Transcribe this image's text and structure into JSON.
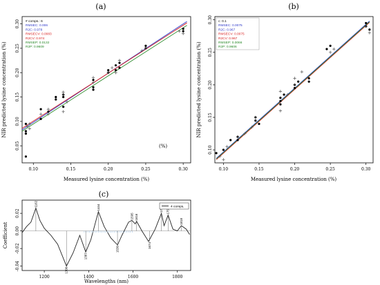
{
  "panel_labels": [
    "(a)",
    "(b)",
    "(c)"
  ],
  "chart_data": [
    {
      "type": "scatter",
      "panel": "(a)",
      "xlabel": "Measured lysine concentration (%)",
      "ylabel": "NIR predicted lysine concentration (%)",
      "xlim": [
        0.085,
        0.31
      ],
      "ylim": [
        0.015,
        0.315
      ],
      "xticks": [
        "0.10",
        "0.15",
        "0.20",
        "0.25",
        "0.30"
      ],
      "yticks": [
        "0.05",
        "0.10",
        "0.15",
        "0.20",
        "0.25",
        "0.30"
      ],
      "xtick_values": [
        0.1,
        0.15,
        0.2,
        0.25,
        0.3
      ],
      "ytick_values": [
        0.05,
        0.1,
        0.15,
        0.2,
        0.25,
        0.3
      ],
      "annotation": "(%)",
      "legend": {
        "placement": "top-left",
        "entries": [
          {
            "text": "# comps.: 6",
            "color": "#000000"
          },
          {
            "text": "RMSEC: 0.006",
            "color": "#2e38c8"
          },
          {
            "text": "R2C: 0.978",
            "color": "#2e38c8"
          },
          {
            "text": "RMSECV: 0.0083",
            "color": "#d81e1e"
          },
          {
            "text": "R2CV: 0.974",
            "color": "#d81e1e"
          },
          {
            "text": "RMSEP: 0.0132",
            "color": "#2a8a2a"
          },
          {
            "text": "R2P: 0.9609",
            "color": "#2a8a2a"
          }
        ]
      },
      "lines": [
        {
          "color": "#2e38c8",
          "x": [
            0.085,
            0.305
          ],
          "y": [
            0.083,
            0.305
          ]
        },
        {
          "color": "#d81e1e",
          "x": [
            0.085,
            0.305
          ],
          "y": [
            0.086,
            0.302
          ]
        },
        {
          "color": "#2a8a2a",
          "x": [
            0.085,
            0.305
          ],
          "y": [
            0.08,
            0.297
          ]
        }
      ],
      "series": [
        {
          "marker": "dot",
          "color": "#000000",
          "x": [
            0.09,
            0.09,
            0.09,
            0.11,
            0.11,
            0.12,
            0.13,
            0.13,
            0.14,
            0.14,
            0.14,
            0.18,
            0.18,
            0.18,
            0.2,
            0.2,
            0.21,
            0.21,
            0.215,
            0.215,
            0.25,
            0.25,
            0.3,
            0.3,
            0.09
          ],
          "y": [
            0.095,
            0.08,
            0.075,
            0.105,
            0.125,
            0.12,
            0.145,
            0.15,
            0.155,
            0.15,
            0.13,
            0.185,
            0.17,
            0.165,
            0.205,
            0.2,
            0.215,
            0.205,
            0.22,
            0.21,
            0.25,
            0.255,
            0.285,
            0.29,
            0.028
          ]
        },
        {
          "marker": "plus",
          "color": "#555555",
          "x": [
            0.092,
            0.095,
            0.095,
            0.11,
            0.12,
            0.12,
            0.14,
            0.14,
            0.14,
            0.145,
            0.18,
            0.18,
            0.2,
            0.205,
            0.21,
            0.215,
            0.245,
            0.25,
            0.3,
            0.295
          ],
          "y": [
            0.09,
            0.085,
            0.095,
            0.115,
            0.115,
            0.125,
            0.12,
            0.16,
            0.155,
            0.14,
            0.18,
            0.19,
            0.2,
            0.21,
            0.2,
            0.225,
            0.245,
            0.25,
            0.28,
            0.285
          ]
        }
      ]
    },
    {
      "type": "scatter",
      "panel": "(b)",
      "xlabel": "Measured lysine concentration (%)",
      "ylabel": "NIR predicted lysine concentration (%)",
      "xlim": [
        0.088,
        0.31
      ],
      "ylim": [
        0.08,
        0.305
      ],
      "xticks": [
        "0.10",
        "0.15",
        "0.20",
        "0.25",
        "0.30"
      ],
      "yticks": [
        "0.10",
        "0.15",
        "0.20",
        "0.25",
        "0.30"
      ],
      "xtick_values": [
        0.1,
        0.15,
        0.2,
        0.25,
        0.3
      ],
      "ytick_values": [
        0.1,
        0.15,
        0.2,
        0.25,
        0.3
      ],
      "legend": {
        "placement": "top-left",
        "entries": [
          {
            "text": "c: 0.1",
            "color": "#000000"
          },
          {
            "text": "RMSEC: 0.0075",
            "color": "#2e38c8"
          },
          {
            "text": "R2C: 0.967",
            "color": "#2e38c8"
          },
          {
            "text": "RMSECV: 0.0075",
            "color": "#d81e1e"
          },
          {
            "text": "R2CV: 0.967",
            "color": "#d81e1e"
          },
          {
            "text": "RMSEP: 0.0066",
            "color": "#2a8a2a"
          },
          {
            "text": "R2P: 0.9606",
            "color": "#2a8a2a"
          }
        ]
      },
      "lines": [
        {
          "color": "#2e38c8",
          "x": [
            0.09,
            0.305
          ],
          "y": [
            0.087,
            0.298
          ]
        },
        {
          "color": "#d81e1e",
          "x": [
            0.09,
            0.305
          ],
          "y": [
            0.085,
            0.296
          ]
        },
        {
          "color": "#2a8a2a",
          "x": [
            0.09,
            0.305
          ],
          "y": [
            0.086,
            0.297
          ]
        }
      ],
      "series": [
        {
          "marker": "dot",
          "color": "#000000",
          "x": [
            0.09,
            0.1,
            0.11,
            0.12,
            0.12,
            0.145,
            0.145,
            0.15,
            0.18,
            0.18,
            0.18,
            0.185,
            0.2,
            0.2,
            0.205,
            0.22,
            0.22,
            0.245,
            0.25,
            0.3,
            0.3,
            0.305
          ],
          "y": [
            0.095,
            0.1,
            0.115,
            0.115,
            0.12,
            0.145,
            0.15,
            0.14,
            0.17,
            0.175,
            0.18,
            0.185,
            0.195,
            0.2,
            0.205,
            0.21,
            0.205,
            0.255,
            0.26,
            0.29,
            0.295,
            0.285
          ]
        },
        {
          "marker": "plus",
          "color": "#555555",
          "x": [
            0.095,
            0.1,
            0.105,
            0.12,
            0.13,
            0.14,
            0.145,
            0.18,
            0.18,
            0.19,
            0.2,
            0.2,
            0.21,
            0.25,
            0.255,
            0.3,
            0.305
          ],
          "y": [
            0.09,
            0.085,
            0.105,
            0.12,
            0.125,
            0.135,
            0.15,
            0.16,
            0.19,
            0.185,
            0.21,
            0.2,
            0.22,
            0.25,
            0.255,
            0.29,
            0.28
          ]
        }
      ]
    },
    {
      "type": "line",
      "panel": "(c)",
      "xlabel": "Wavelengths (nm)",
      "ylabel": "Coefficient",
      "xlim": [
        1100,
        1860
      ],
      "ylim": [
        -0.045,
        0.035
      ],
      "xticks": [
        "1200",
        "1400",
        "1600",
        "1800"
      ],
      "yticks": [
        "-0.04",
        "-0.02",
        "0.00",
        "0.02"
      ],
      "xtick_values": [
        1200,
        1400,
        1600,
        1800
      ],
      "ytick_values": [
        -0.04,
        -0.02,
        0.0,
        0.02
      ],
      "legend": {
        "placement": "top-right",
        "entries": [
          {
            "text": "4 comps."
          }
        ]
      },
      "series": [
        {
          "name": "4 comps.",
          "x": [
            1100,
            1120,
            1140,
            1162,
            1180,
            1200,
            1230,
            1260,
            1300,
            1330,
            1360,
            1387,
            1410,
            1444,
            1470,
            1500,
            1530,
            1550,
            1580,
            1595,
            1610,
            1616,
            1640,
            1670,
            1700,
            1728,
            1740,
            1758,
            1780,
            1800,
            1818,
            1840,
            1855
          ],
          "y": [
            -0.002,
            0.005,
            0.01,
            0.026,
            0.012,
            0.003,
            -0.005,
            -0.015,
            -0.04,
            -0.025,
            -0.005,
            -0.024,
            -0.01,
            0.022,
            0.005,
            -0.008,
            -0.016,
            -0.005,
            0.01,
            0.012,
            0.008,
            0.011,
            0.0,
            -0.012,
            0.002,
            0.02,
            0.006,
            0.018,
            0.002,
            0.0,
            0.006,
            0.002,
            -0.004
          ]
        }
      ],
      "peak_labels": [
        {
          "x": 1162,
          "y": 0.026,
          "text": "1162"
        },
        {
          "x": 1300,
          "y": -0.04,
          "text": "1300"
        },
        {
          "x": 1387,
          "y": -0.024,
          "text": "1387"
        },
        {
          "x": 1444,
          "y": 0.022,
          "text": "1444"
        },
        {
          "x": 1530,
          "y": -0.016,
          "text": "1530"
        },
        {
          "x": 1595,
          "y": 0.012,
          "text": "1595"
        },
        {
          "x": 1616,
          "y": 0.011,
          "text": "1616"
        },
        {
          "x": 1674,
          "y": -0.012,
          "text": "1674"
        },
        {
          "x": 1728,
          "y": 0.02,
          "text": "1728"
        },
        {
          "x": 1758,
          "y": 0.018,
          "text": "1758"
        },
        {
          "x": 1818,
          "y": 0.006,
          "text": "1818"
        }
      ]
    }
  ]
}
